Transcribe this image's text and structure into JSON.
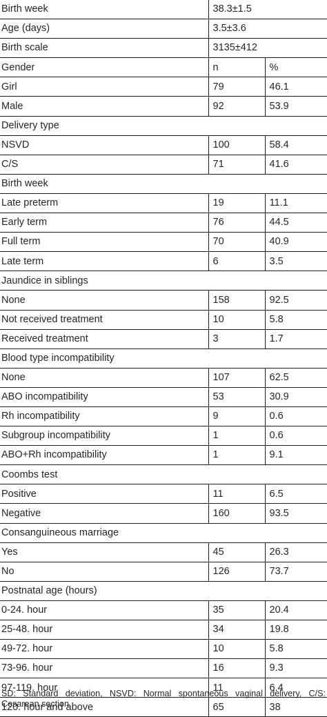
{
  "table": {
    "rows": [
      {
        "type": "wide",
        "label": "Birth week",
        "value": "38.3±1.5"
      },
      {
        "type": "wide",
        "label": "Age (days)",
        "value": "3.5±3.6"
      },
      {
        "type": "wide",
        "label": "Birth scale",
        "value": "3135±412"
      },
      {
        "type": "three",
        "label": "Gender",
        "n": "n",
        "pct": "%"
      },
      {
        "type": "three",
        "label": "Girl",
        "n": "79",
        "pct": "46.1"
      },
      {
        "type": "three",
        "label": "Male",
        "n": "92",
        "pct": "53.9"
      },
      {
        "type": "section",
        "label": "Delivery type"
      },
      {
        "type": "three",
        "label": "NSVD",
        "n": "100",
        "pct": "58.4"
      },
      {
        "type": "three",
        "label": "C/S",
        "n": "71",
        "pct": "41.6"
      },
      {
        "type": "section",
        "label": "Birth week"
      },
      {
        "type": "three",
        "label": "Late preterm",
        "n": "19",
        "pct": "11.1"
      },
      {
        "type": "three",
        "label": "Early term",
        "n": "76",
        "pct": "44.5"
      },
      {
        "type": "three",
        "label": "Full term",
        "n": "70",
        "pct": "40.9"
      },
      {
        "type": "three",
        "label": "Late term",
        "n": "6",
        "pct": "3.5"
      },
      {
        "type": "section",
        "label": "Jaundice in siblings"
      },
      {
        "type": "three",
        "label": "None",
        "n": "158",
        "pct": "92.5"
      },
      {
        "type": "three",
        "label": "Not received treatment",
        "n": "10",
        "pct": "5.8"
      },
      {
        "type": "three",
        "label": "Received treatment",
        "n": "3",
        "pct": "1.7"
      },
      {
        "type": "section",
        "label": "Blood type incompatibility"
      },
      {
        "type": "three",
        "label": "None",
        "n": "107",
        "pct": "62.5"
      },
      {
        "type": "three",
        "label": "ABO incompatibility",
        "n": "53",
        "pct": "30.9"
      },
      {
        "type": "three",
        "label": "Rh incompatibility",
        "n": "9",
        "pct": "0.6"
      },
      {
        "type": "three",
        "label": "Subgroup incompatibility",
        "n": "1",
        "pct": "0.6"
      },
      {
        "type": "three",
        "label": "ABO+Rh incompatibility",
        "n": "1",
        "pct": "9.1"
      },
      {
        "type": "section",
        "label": "Coombs test"
      },
      {
        "type": "three",
        "label": "Positive",
        "n": "11",
        "pct": "6.5"
      },
      {
        "type": "three",
        "label": "Negative",
        "n": "160",
        "pct": "93.5"
      },
      {
        "type": "section",
        "label": "Consanguineous marriage"
      },
      {
        "type": "three",
        "label": "Yes",
        "n": "45",
        "pct": "26.3"
      },
      {
        "type": "three",
        "label": "No",
        "n": "126",
        "pct": "73.7"
      },
      {
        "type": "section",
        "label": "Postnatal age (hours)"
      },
      {
        "type": "three",
        "label": "0-24. hour",
        "n": "35",
        "pct": "20.4"
      },
      {
        "type": "three",
        "label": "25-48. hour",
        "n": "34",
        "pct": "19.8"
      },
      {
        "type": "three",
        "label": "49-72. hour",
        "n": "10",
        "pct": "5.8"
      },
      {
        "type": "three",
        "label": "73-96. hour",
        "n": "16",
        "pct": "9.3"
      },
      {
        "type": "three",
        "label": "97-119. hour",
        "n": "11",
        "pct": "6.4"
      },
      {
        "type": "three",
        "label": "120. hour and above",
        "n": "65",
        "pct": "38"
      }
    ]
  },
  "footnote": "SD: Standard deviation, NSVD: Normal spontaneous vaginal delivery, C/S: Cesarean section"
}
